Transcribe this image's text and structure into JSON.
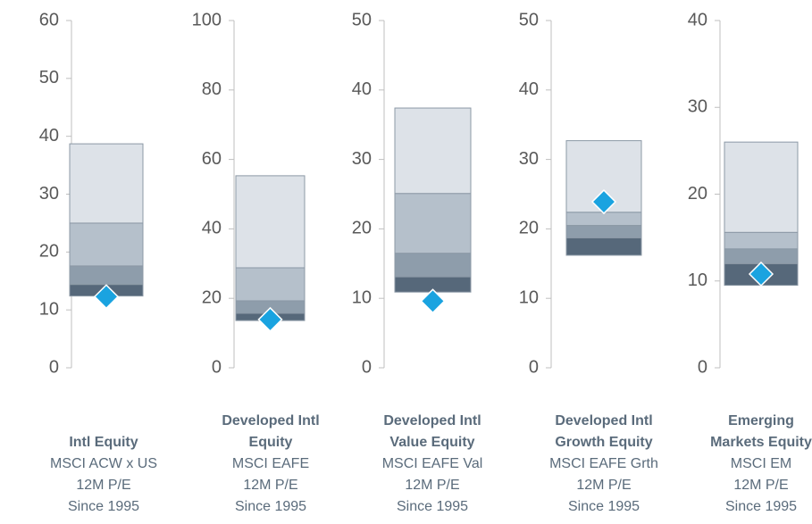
{
  "chart_data": [
    {
      "type": "range-bar",
      "ylim": [
        0,
        60
      ],
      "yticks": [
        0,
        10,
        20,
        30,
        40,
        50,
        60
      ],
      "bands": [
        [
          12.4,
          14.4
        ],
        [
          14.4,
          17.6
        ],
        [
          17.6,
          25.0
        ],
        [
          25.0,
          38.7
        ]
      ],
      "current": 12.3,
      "band_colors": [
        "#56687a",
        "#8e9dab",
        "#b5c0cb",
        "#dde2e8"
      ],
      "marker_color": "#1aa3e0",
      "name": [
        "Intl Equity"
      ],
      "lines": [
        "MSCI ACW x US",
        "12M P/E",
        "Since 1995"
      ]
    },
    {
      "type": "range-bar",
      "ylim": [
        0,
        100
      ],
      "yticks": [
        0,
        20,
        40,
        60,
        80,
        100
      ],
      "bands": [
        [
          13.6,
          15.7
        ],
        [
          15.7,
          19.3
        ],
        [
          19.3,
          28.8
        ],
        [
          28.8,
          55.3
        ]
      ],
      "current": 13.9,
      "band_colors": [
        "#56687a",
        "#8e9dab",
        "#b5c0cb",
        "#dde2e8"
      ],
      "marker_color": "#1aa3e0",
      "name": [
        "Developed Intl",
        "Equity"
      ],
      "lines": [
        "MSCI EAFE",
        "12M P/E",
        "Since 1995"
      ]
    },
    {
      "type": "range-bar",
      "ylim": [
        0,
        50
      ],
      "yticks": [
        0,
        10,
        20,
        30,
        40,
        50
      ],
      "bands": [
        [
          10.9,
          13.1
        ],
        [
          13.1,
          16.5
        ],
        [
          16.5,
          25.1
        ],
        [
          25.1,
          37.4
        ]
      ],
      "current": 9.6,
      "band_colors": [
        "#56687a",
        "#8e9dab",
        "#b5c0cb",
        "#dde2e8"
      ],
      "marker_color": "#1aa3e0",
      "name": [
        "Developed Intl",
        "Value Equity"
      ],
      "lines": [
        "MSCI EAFE Val",
        "12M P/E",
        "Since 1995"
      ]
    },
    {
      "type": "range-bar",
      "ylim": [
        0,
        50
      ],
      "yticks": [
        0,
        10,
        20,
        30,
        40,
        50
      ],
      "bands": [
        [
          16.2,
          18.7
        ],
        [
          18.7,
          20.5
        ],
        [
          20.5,
          22.4
        ],
        [
          22.4,
          32.7
        ]
      ],
      "current": 23.9,
      "band_colors": [
        "#56687a",
        "#8e9dab",
        "#b5c0cb",
        "#dde2e8"
      ],
      "marker_color": "#1aa3e0",
      "name": [
        "Developed Intl",
        "Growth Equity"
      ],
      "lines": [
        "MSCI EAFE Grth",
        "12M P/E",
        "Since 1995"
      ]
    },
    {
      "type": "range-bar",
      "ylim": [
        0,
        40
      ],
      "yticks": [
        0,
        10,
        20,
        30,
        40
      ],
      "bands": [
        [
          9.5,
          12.0
        ],
        [
          12.0,
          13.7
        ],
        [
          13.7,
          15.6
        ],
        [
          15.6,
          26.0
        ]
      ],
      "current": 10.8,
      "band_colors": [
        "#56687a",
        "#8e9dab",
        "#b5c0cb",
        "#dde2e8"
      ],
      "marker_color": "#1aa3e0",
      "name": [
        "Emerging",
        "Markets Equity"
      ],
      "lines": [
        "MSCI EM",
        "12M P/E",
        "Since 1995"
      ]
    }
  ]
}
